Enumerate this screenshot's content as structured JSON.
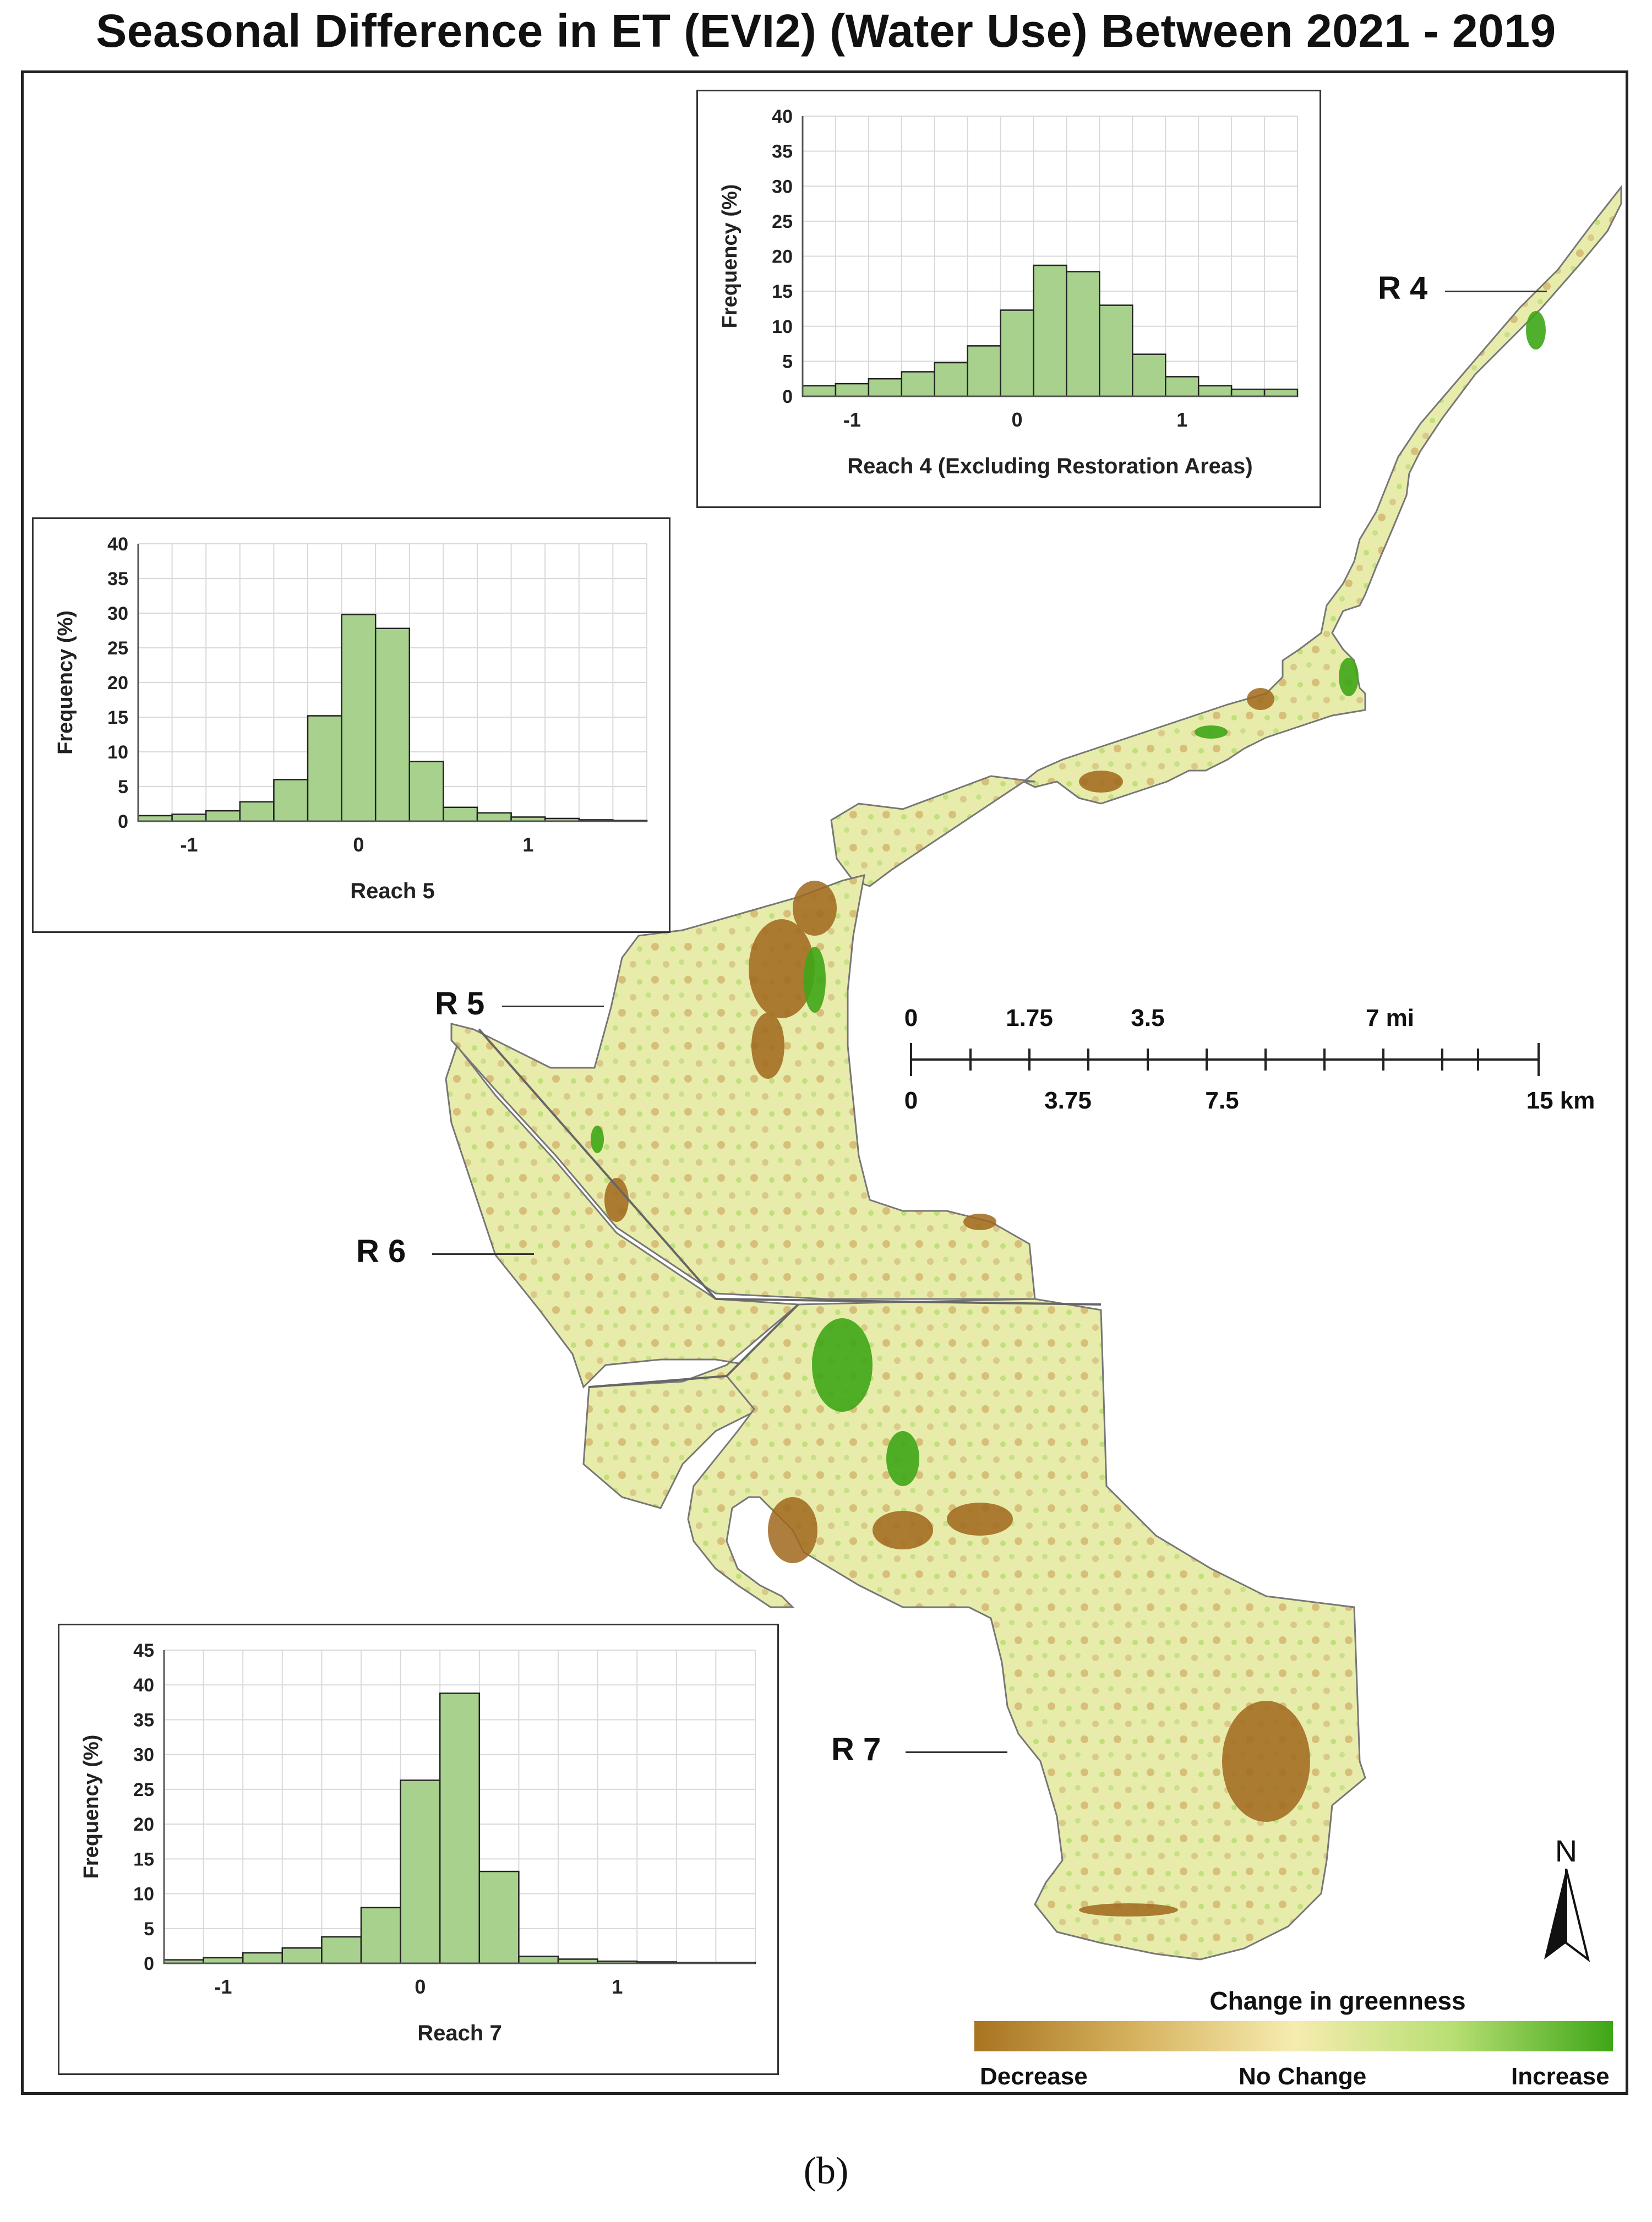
{
  "title": "Seasonal Difference in ET (EVI2) (Water Use) Between 2021 - 2019",
  "sub_caption": "(b)",
  "reach_labels": {
    "r4": "R 4",
    "r5": "R 5",
    "r6": "R 6",
    "r7": "R 7"
  },
  "scale_bar": {
    "mi_labels": [
      "0",
      "1.75",
      "3.5",
      "7 mi"
    ],
    "km_labels": [
      "0",
      "3.75",
      "7.5",
      "15 km"
    ]
  },
  "north_label": "N",
  "legend": {
    "title": "Change in greenness",
    "low": "Decrease",
    "mid": "No Change",
    "high": "Increase",
    "colors": [
      "#a87420",
      "#d6b25e",
      "#f6ecb0",
      "#b7df72",
      "#3ea617"
    ]
  },
  "colors": {
    "bar_fill": "#a9d18e",
    "bar_stroke": "#222222",
    "grid": "#d9d9d9"
  },
  "chart_data": [
    {
      "type": "bar",
      "ylabel": "Frequency (%)",
      "xlabel": "Reach 4 (Excluding Restoration Areas)",
      "ylim": [
        0,
        40
      ],
      "yticks": [
        0,
        5,
        10,
        15,
        20,
        25,
        30,
        35,
        40
      ],
      "xlim": [
        -1.3,
        1.7
      ],
      "xticks": [
        -1,
        0,
        1
      ],
      "bin_width": 0.2,
      "bin_starts": [
        -1.3,
        -1.1,
        -0.9,
        -0.7,
        -0.5,
        -0.3,
        -0.1,
        0.1,
        0.3,
        0.5,
        0.7,
        0.9,
        1.1,
        1.3,
        1.5
      ],
      "values": [
        1.5,
        1.8,
        2.5,
        3.5,
        4.8,
        7.2,
        12.3,
        18.7,
        17.8,
        13.0,
        6.0,
        2.8,
        1.5,
        1.0,
        1.0
      ],
      "grid": true
    },
    {
      "type": "bar",
      "ylabel": "Frequency (%)",
      "xlabel": "Reach 5",
      "ylim": [
        0,
        40
      ],
      "yticks": [
        0,
        5,
        10,
        15,
        20,
        25,
        30,
        35,
        40
      ],
      "xlim": [
        -1.3,
        1.7
      ],
      "xticks": [
        -1,
        0,
        1
      ],
      "bin_width": 0.2,
      "bin_starts": [
        -1.3,
        -1.1,
        -0.9,
        -0.7,
        -0.5,
        -0.3,
        -0.1,
        0.1,
        0.3,
        0.5,
        0.7,
        0.9,
        1.1,
        1.3,
        1.5
      ],
      "values": [
        0.8,
        1.0,
        1.5,
        2.8,
        6.0,
        15.2,
        29.8,
        27.8,
        8.6,
        2.0,
        1.2,
        0.6,
        0.4,
        0.2,
        0.1
      ],
      "grid": true
    },
    {
      "type": "bar",
      "ylabel": "Frequency (%)",
      "xlabel": "Reach 7",
      "ylim": [
        0,
        45
      ],
      "yticks": [
        0,
        5,
        10,
        15,
        20,
        25,
        30,
        35,
        40,
        45
      ],
      "xlim": [
        -1.3,
        1.7
      ],
      "xticks": [
        -1,
        0,
        1
      ],
      "bin_width": 0.2,
      "bin_starts": [
        -1.3,
        -1.1,
        -0.9,
        -0.7,
        -0.5,
        -0.3,
        -0.1,
        0.1,
        0.3,
        0.5,
        0.7,
        0.9,
        1.1,
        1.3,
        1.5
      ],
      "values": [
        0.5,
        0.8,
        1.5,
        2.2,
        3.8,
        8.0,
        26.3,
        38.8,
        13.2,
        1.0,
        0.6,
        0.3,
        0.2,
        0.1,
        0.1
      ],
      "grid": true
    }
  ]
}
